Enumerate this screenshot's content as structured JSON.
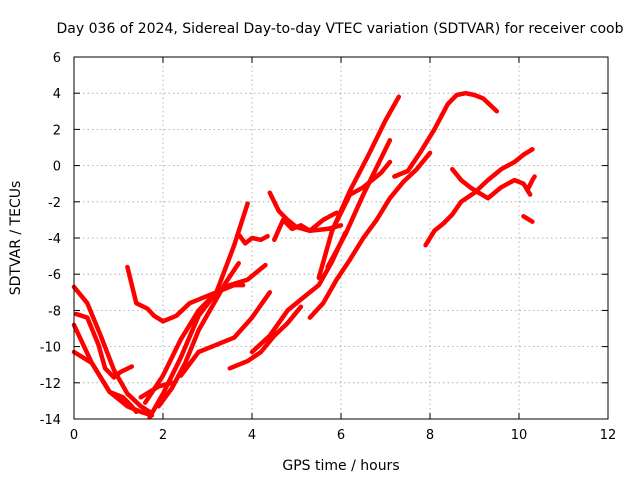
{
  "chart_data": {
    "type": "scatter",
    "title": "Day 036 of 2024, Sidereal Day-to-day VTEC variation (SDTVAR) for receiver coob",
    "xlabel": "GPS time / hours",
    "ylabel": "SDTVAR / TECUs",
    "xlim": [
      0,
      12
    ],
    "ylim": [
      -14,
      6
    ],
    "xticks": [
      0,
      2,
      4,
      6,
      8,
      10,
      12
    ],
    "yticks": [
      -14,
      -12,
      -10,
      -8,
      -6,
      -4,
      -2,
      0,
      2,
      4,
      6
    ],
    "grid": true,
    "marker": "plus",
    "color": "#ff0000",
    "series": [
      {
        "name": "s1",
        "x": [
          0.0,
          0.3,
          0.6,
          0.9,
          1.2,
          1.5,
          1.7
        ],
        "y": [
          -6.7,
          -7.6,
          -9.4,
          -11.3,
          -12.6,
          -13.3,
          -13.6
        ]
      },
      {
        "name": "s2",
        "x": [
          0.0,
          0.4,
          0.8,
          1.1,
          1.3,
          1.4
        ],
        "y": [
          -8.8,
          -10.9,
          -12.5,
          -12.8,
          -13.3,
          -13.6
        ]
      },
      {
        "name": "s3",
        "x": [
          0.0,
          0.4,
          0.8,
          1.2,
          1.5,
          1.75
        ],
        "y": [
          -10.3,
          -10.9,
          -12.5,
          -13.3,
          -13.6,
          -13.8
        ]
      },
      {
        "name": "s4",
        "x": [
          0.05,
          0.3,
          0.55,
          0.7,
          0.9,
          1.05,
          1.3
        ],
        "y": [
          -8.2,
          -8.4,
          -9.9,
          -11.2,
          -11.7,
          -11.4,
          -11.1
        ]
      },
      {
        "name": "s5",
        "x": [
          1.2,
          1.4,
          1.65,
          1.8,
          2.0,
          2.3,
          2.6,
          2.9,
          3.2,
          3.5,
          3.9,
          4.1,
          4.3
        ],
        "y": [
          -5.6,
          -7.6,
          -7.9,
          -8.3,
          -8.6,
          -8.3,
          -7.6,
          -7.3,
          -7.0,
          -6.6,
          -6.3,
          -5.9,
          -5.5
        ]
      },
      {
        "name": "s6",
        "x": [
          1.7,
          2.0,
          2.4,
          2.8,
          3.2,
          3.6,
          3.9
        ],
        "y": [
          -13.9,
          -12.6,
          -10.6,
          -8.3,
          -7.0,
          -4.4,
          -2.1
        ]
      },
      {
        "name": "s7",
        "x": [
          1.6,
          2.0,
          2.4,
          2.8,
          3.2,
          3.6,
          3.8
        ],
        "y": [
          -13.1,
          -11.6,
          -9.6,
          -8.0,
          -7.0,
          -6.6,
          -6.6
        ]
      },
      {
        "name": "s8",
        "x": [
          1.5,
          1.9,
          2.2
        ],
        "y": [
          -12.8,
          -12.2,
          -12.0
        ]
      },
      {
        "name": "s9",
        "x": [
          1.9,
          2.2,
          2.5,
          2.8,
          3.1,
          3.4,
          3.7
        ],
        "y": [
          -13.3,
          -12.3,
          -10.9,
          -9.1,
          -7.8,
          -6.5,
          -5.4
        ]
      },
      {
        "name": "s10",
        "x": [
          2.4,
          2.8,
          3.2,
          3.6,
          4.0,
          4.4
        ],
        "y": [
          -11.6,
          -10.3,
          -9.9,
          -9.5,
          -8.4,
          -7.0
        ]
      },
      {
        "name": "s11",
        "x": [
          3.7,
          3.85,
          4.0,
          4.2,
          4.35
        ],
        "y": [
          -3.8,
          -4.3,
          -4.0,
          -4.1,
          -3.9
        ]
      },
      {
        "name": "s12",
        "x": [
          3.5,
          3.9,
          4.2,
          4.5,
          4.8,
          5.1
        ],
        "y": [
          -11.2,
          -10.8,
          -10.3,
          -9.4,
          -8.7,
          -7.8
        ]
      },
      {
        "name": "s13",
        "x": [
          4.0,
          4.4,
          4.8,
          5.2,
          5.5,
          5.8,
          6.1
        ],
        "y": [
          -10.3,
          -9.4,
          -8.0,
          -7.2,
          -6.6,
          -5.3,
          -3.7
        ]
      },
      {
        "name": "s14",
        "x": [
          4.4,
          4.6,
          4.8,
          5.0,
          5.3,
          5.7,
          6.0
        ],
        "y": [
          -1.5,
          -2.5,
          -3.0,
          -3.4,
          -3.6,
          -3.5,
          -3.3
        ]
      },
      {
        "name": "s15",
        "x": [
          4.5,
          4.7,
          4.9,
          5.1,
          5.3,
          5.6,
          5.9
        ],
        "y": [
          -4.1,
          -3.0,
          -3.5,
          -3.3,
          -3.6,
          -3.0,
          -2.6
        ]
      },
      {
        "name": "s16",
        "x": [
          5.5,
          5.8,
          6.2,
          6.6,
          7.0,
          7.3
        ],
        "y": [
          -6.2,
          -3.6,
          -1.4,
          0.5,
          2.5,
          3.8
        ]
      },
      {
        "name": "s17",
        "x": [
          5.7,
          6.1,
          6.5,
          6.8,
          7.1
        ],
        "y": [
          -5.6,
          -3.8,
          -1.6,
          -0.1,
          1.4
        ]
      },
      {
        "name": "s18",
        "x": [
          5.8,
          6.2,
          6.5,
          6.9,
          7.1
        ],
        "y": [
          -3.6,
          -1.6,
          -1.2,
          -0.4,
          0.2
        ]
      },
      {
        "name": "s19",
        "x": [
          5.3,
          5.6,
          5.9,
          6.2,
          6.5,
          6.8,
          7.1,
          7.4,
          7.7,
          8.0
        ],
        "y": [
          -8.4,
          -7.6,
          -6.3,
          -5.2,
          -4.0,
          -3.0,
          -1.8,
          -0.9,
          -0.2,
          0.7
        ]
      },
      {
        "name": "s20",
        "x": [
          7.2,
          7.5,
          7.8,
          8.1,
          8.4,
          8.6,
          8.8,
          9.0,
          9.2,
          9.5
        ],
        "y": [
          -0.6,
          -0.3,
          0.8,
          2.0,
          3.4,
          3.9,
          4.0,
          3.9,
          3.7,
          3.0
        ]
      },
      {
        "name": "s21",
        "x": [
          7.9,
          8.1,
          8.3,
          8.5,
          8.7,
          9.0,
          9.3,
          9.6,
          9.9,
          10.1,
          10.3
        ],
        "y": [
          -4.4,
          -3.6,
          -3.2,
          -2.7,
          -2.0,
          -1.5,
          -0.8,
          -0.2,
          0.2,
          0.6,
          0.9
        ]
      },
      {
        "name": "s22",
        "x": [
          8.5,
          8.7,
          8.9,
          9.1,
          9.3,
          9.6,
          9.9,
          10.1,
          10.25
        ],
        "y": [
          -0.2,
          -0.8,
          -1.2,
          -1.5,
          -1.8,
          -1.2,
          -0.8,
          -1.0,
          -1.6
        ]
      },
      {
        "name": "s23",
        "x": [
          10.2,
          10.3,
          10.35
        ],
        "y": [
          -1.3,
          -0.8,
          -0.6
        ]
      },
      {
        "name": "s24",
        "x": [
          10.1,
          10.3
        ],
        "y": [
          -2.8,
          -3.1
        ]
      }
    ]
  }
}
